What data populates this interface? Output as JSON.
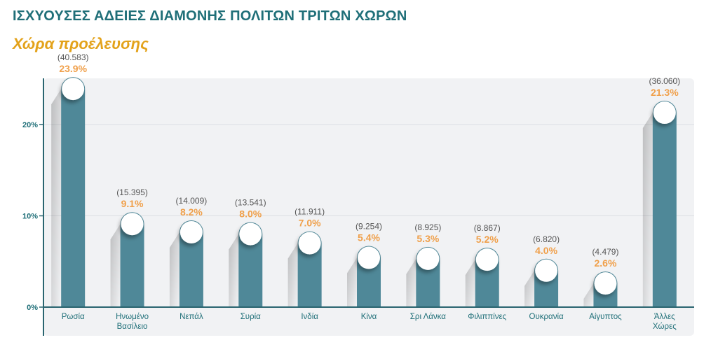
{
  "title": "ΙΣΧΥΟΥΣΕΣ ΑΔΕΙΕΣ ΔΙΑΜΟΝΗΣ ΠΟΛΙΤΩΝ ΤΡΙΤΩΝ ΧΩΡΩΝ",
  "subtitle": "Χώρα προέλευσης",
  "colors": {
    "title": "#1f6f78",
    "subtitle": "#e3a21a",
    "bar": "#4f8898",
    "percent_label": "#f0a04b",
    "plot_background": "#f1f2f4"
  },
  "chart_data": {
    "type": "bar",
    "categories": [
      [
        "Ρωσία"
      ],
      [
        "Ηνωμένο",
        "Βασίλειο"
      ],
      [
        "Νεπάλ"
      ],
      [
        "Συρία"
      ],
      [
        "Ινδία"
      ],
      [
        "Κίνα"
      ],
      [
        "Σρι Λάνκα"
      ],
      [
        "Φιλιππίνες"
      ],
      [
        "Ουκρανία"
      ],
      [
        "Αίγυπτος"
      ],
      [
        "Άλλες",
        "Χώρες"
      ]
    ],
    "values": [
      23.9,
      9.1,
      8.2,
      8.0,
      7.0,
      5.4,
      5.3,
      5.2,
      4.0,
      2.6,
      21.3
    ],
    "percent_labels": [
      "23.9%",
      "9.1%",
      "8.2%",
      "8.0%",
      "7.0%",
      "5.4%",
      "5.3%",
      "5.2%",
      "4.0%",
      "2.6%",
      "21.3%"
    ],
    "count_labels": [
      "(40.583)",
      "(15.395)",
      "(14.009)",
      "(13.541)",
      "(11.911)",
      "(9.254)",
      "(8.925)",
      "(8.867)",
      "(6.820)",
      "(4.479)",
      "(36.060)"
    ],
    "y_ticks": [
      "0%",
      "10%",
      "20%"
    ],
    "y_tick_values": [
      0,
      10,
      20
    ],
    "ylim": [
      0,
      25
    ],
    "grid": true,
    "legend": "none"
  }
}
